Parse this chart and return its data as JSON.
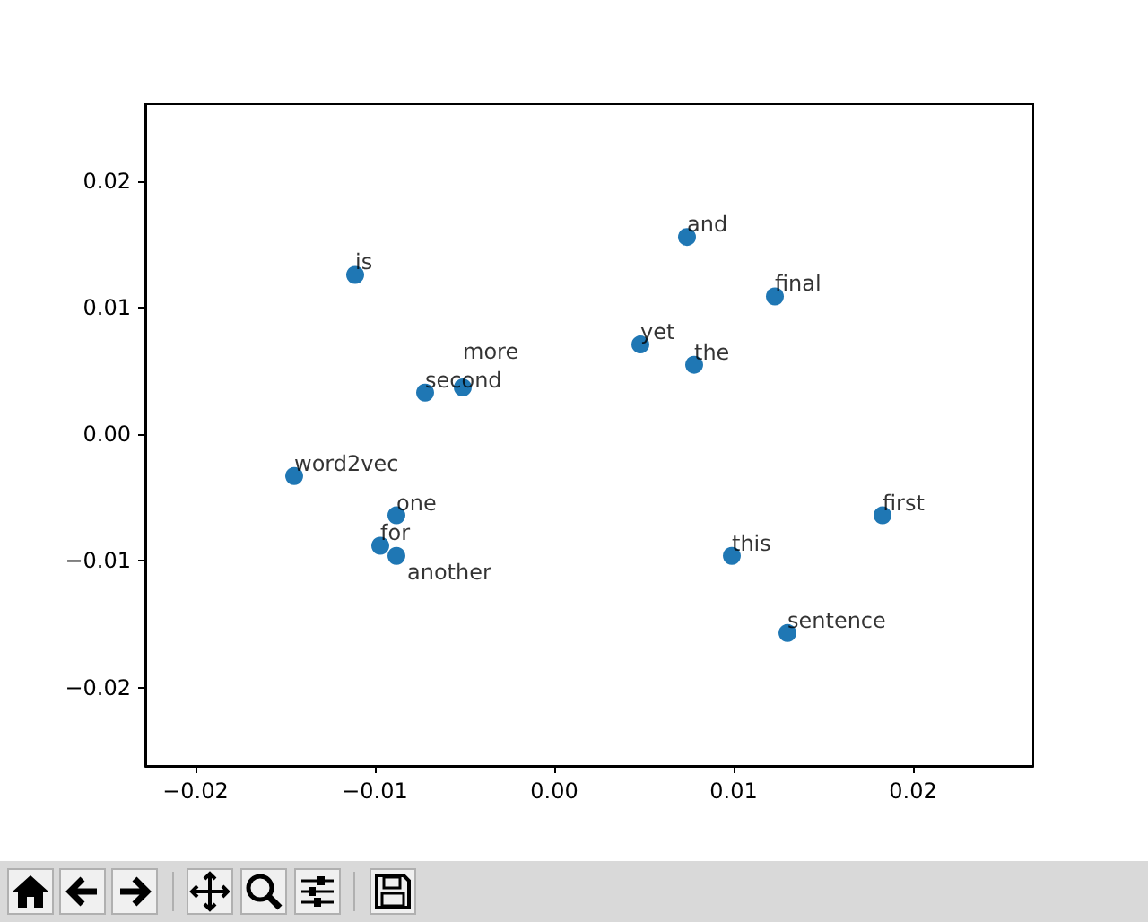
{
  "chart_data": {
    "type": "scatter",
    "color": "#1f77b4",
    "marker": "circle",
    "grid": false,
    "x": [
      -0.0111,
      -0.0072,
      -0.0051,
      -0.0145,
      -0.0088,
      -0.0097,
      -0.0088,
      0.0074,
      0.0123,
      0.0048,
      0.0078,
      0.0183,
      0.0099,
      0.013
    ],
    "values": [
      0.0126,
      0.0033,
      0.0037,
      -0.0033,
      -0.0064,
      -0.0088,
      -0.0096,
      0.0156,
      0.0109,
      0.0071,
      0.0055,
      -0.0064,
      -0.0096,
      -0.0157
    ],
    "xlim": [
      -0.0228,
      0.0267
    ],
    "xticks": [
      {
        "value": -0.02,
        "label": "−0.02"
      },
      {
        "value": -0.01,
        "label": "−0.01"
      },
      {
        "value": 0,
        "label": "0.00"
      },
      {
        "value": 0.01,
        "label": "0.01"
      },
      {
        "value": 0.02,
        "label": "0.02"
      }
    ],
    "ylim": [
      -0.0262,
      0.0261
    ],
    "yticks": [
      {
        "value": -0.02,
        "label": "−0.02"
      },
      {
        "value": -0.01,
        "label": "−0.01"
      },
      {
        "value": 0,
        "label": "0.00"
      },
      {
        "value": 0.01,
        "label": "0.01"
      },
      {
        "value": 0.02,
        "label": "0.02"
      }
    ],
    "annotations": [
      {
        "text": "is",
        "x": -0.0111,
        "y": 0.0126
      },
      {
        "text": "second",
        "x": -0.0072,
        "y": 0.0033
      },
      {
        "text": "more",
        "x": -0.0051,
        "y": 0.0037
      },
      {
        "text": "word2vec",
        "x": -0.0145,
        "y": -0.0033
      },
      {
        "text": "one",
        "x": -0.0088,
        "y": -0.0064
      },
      {
        "text": "for",
        "x": -0.0097,
        "y": -0.0088
      },
      {
        "text": "another",
        "x": -0.0088,
        "y": -0.0096
      },
      {
        "text": "and",
        "x": 0.0074,
        "y": 0.0156
      },
      {
        "text": "final",
        "x": 0.0123,
        "y": 0.0109
      },
      {
        "text": "yet",
        "x": 0.0048,
        "y": 0.0071
      },
      {
        "text": "the",
        "x": 0.0078,
        "y": 0.0055
      },
      {
        "text": "first",
        "x": 0.0183,
        "y": -0.0064
      },
      {
        "text": "this",
        "x": 0.0099,
        "y": -0.0096
      },
      {
        "text": "sentence",
        "x": 0.013,
        "y": -0.0157
      }
    ]
  }
}
